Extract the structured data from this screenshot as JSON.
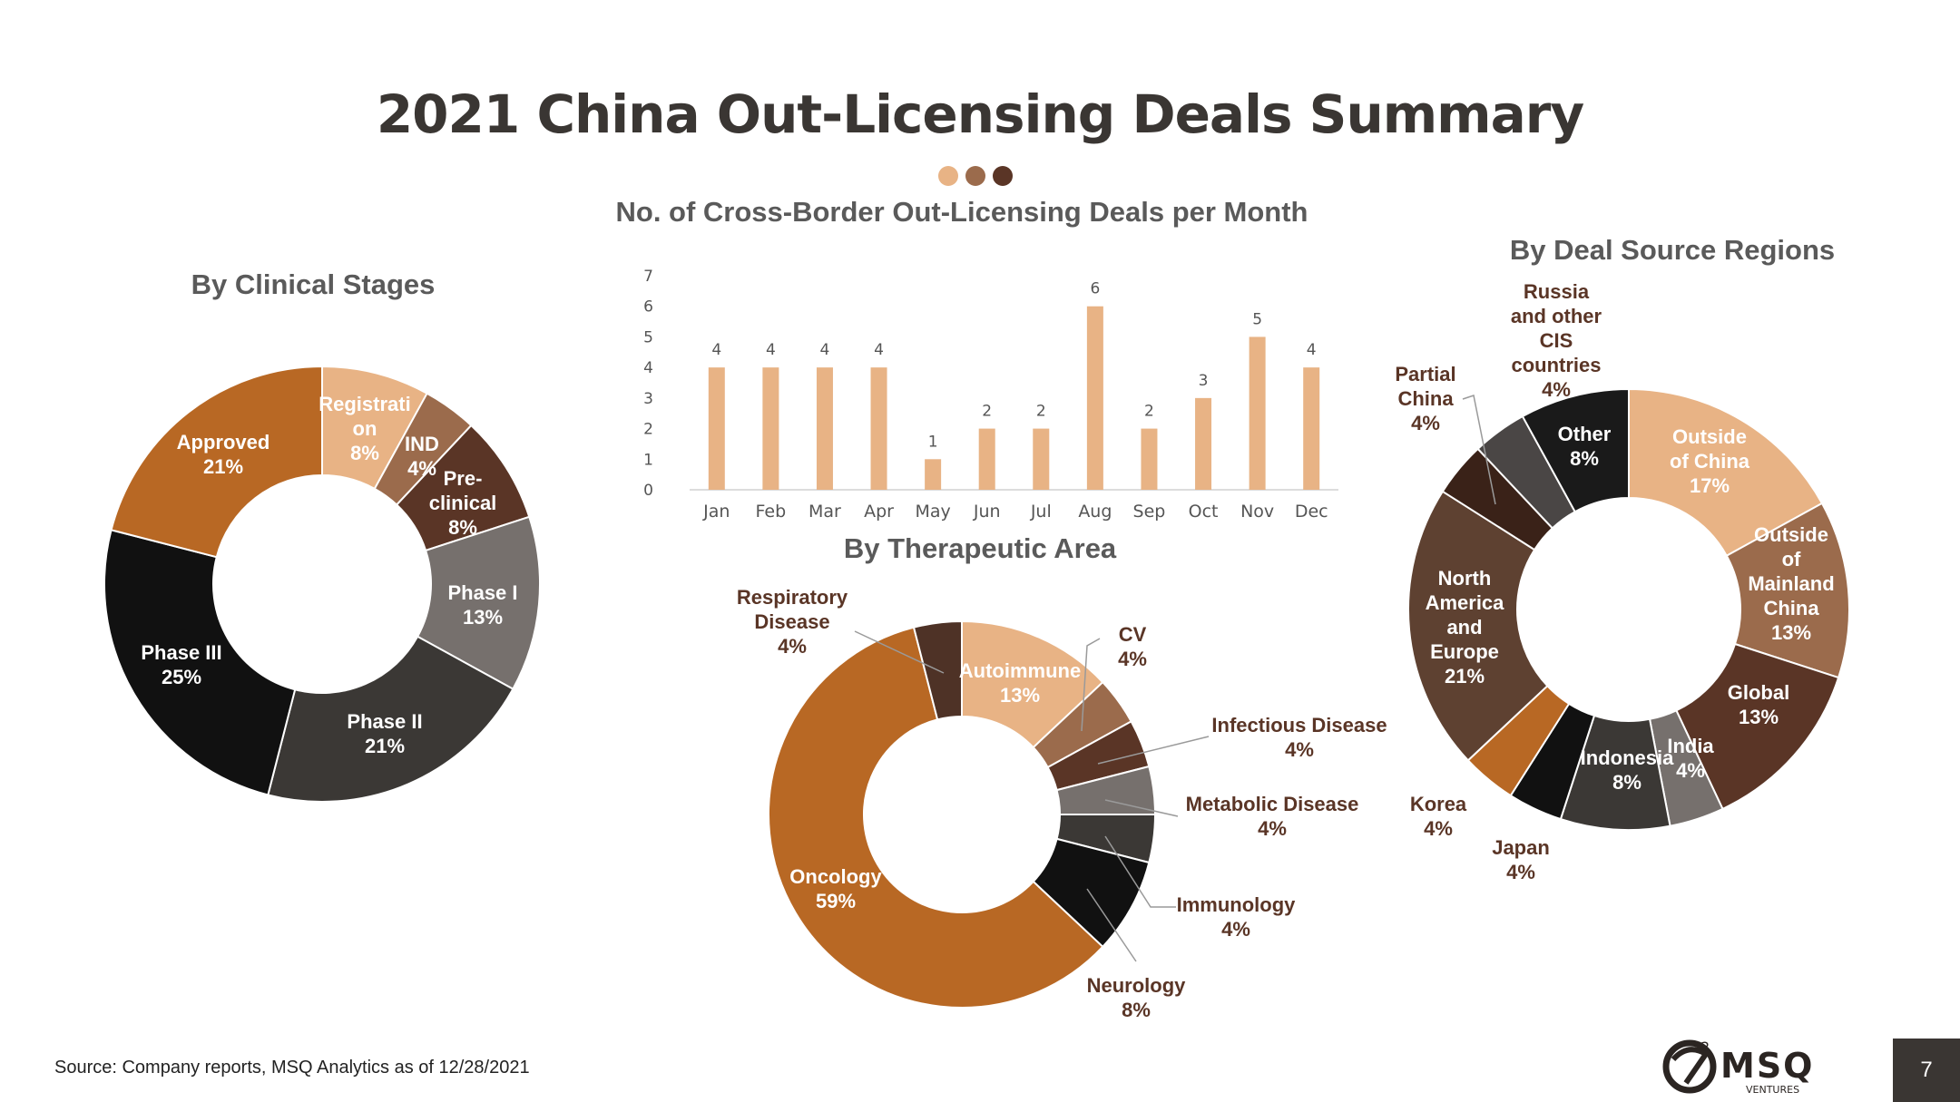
{
  "title": "2021 China Out-Licensing Deals Summary",
  "dots": [
    "#e8b385",
    "#9b6b4c",
    "#5a3526"
  ],
  "source": "Source: Company reports, MSQ Analytics as of 12/28/2021",
  "logo": {
    "brand": "MSQ",
    "sub": "VENTURES",
    "mark_sup": "2"
  },
  "page_number": "7",
  "chart_data": [
    {
      "type": "bar",
      "title": "No. of Cross-Border Out-Licensing Deals per Month",
      "categories": [
        "Jan",
        "Feb",
        "Mar",
        "Apr",
        "May",
        "Jun",
        "Jul",
        "Aug",
        "Sep",
        "Oct",
        "Nov",
        "Dec"
      ],
      "values": [
        4,
        4,
        4,
        4,
        1,
        2,
        2,
        6,
        2,
        3,
        5,
        4
      ],
      "ylim": [
        0,
        7
      ],
      "yticks": [
        "0",
        "1",
        "2",
        "3",
        "4",
        "5",
        "6",
        "7"
      ],
      "color": "#e8b385",
      "grid": false
    },
    {
      "type": "pie",
      "title": "By Clinical Stages",
      "slices": [
        {
          "label": "Registration",
          "display": "Registrati on",
          "pct": "8%",
          "value": 8,
          "color": "#e8b385",
          "text": "#ffffff"
        },
        {
          "label": "IND",
          "display": "IND",
          "pct": "4%",
          "value": 4,
          "color": "#9b6b4c",
          "text": "#ffffff"
        },
        {
          "label": "Pre-clinical",
          "display": "Pre- clinical",
          "pct": "8%",
          "value": 8,
          "color": "#5a3526",
          "text": "#ffffff"
        },
        {
          "label": "Phase I",
          "display": "Phase I",
          "pct": "13%",
          "value": 13,
          "color": "#76706d",
          "text": "#ffffff"
        },
        {
          "label": "Phase II",
          "display": "Phase II",
          "pct": "21%",
          "value": 21,
          "color": "#3b3835",
          "text": "#ffffff"
        },
        {
          "label": "Phase III",
          "display": "Phase III",
          "pct": "25%",
          "value": 25,
          "color": "#111111",
          "text": "#ffffff"
        },
        {
          "label": "Approved",
          "display": "Approved",
          "pct": "21%",
          "value": 21,
          "color": "#b86824",
          "text": "#ffffff"
        }
      ]
    },
    {
      "type": "pie",
      "title": "By Therapeutic Area",
      "slices": [
        {
          "label": "Autoimmune",
          "display": "Autoimmune",
          "pct": "13%",
          "value": 13,
          "color": "#e8b385"
        },
        {
          "label": "CV",
          "display": "CV",
          "pct": "4%",
          "value": 4,
          "color": "#9b6b4c"
        },
        {
          "label": "Infectious Disease",
          "display": "Infectious Disease",
          "pct": "4%",
          "value": 4,
          "color": "#5a3526"
        },
        {
          "label": "Metabolic Disease",
          "display": "Metabolic Disease",
          "pct": "4%",
          "value": 4,
          "color": "#76706d"
        },
        {
          "label": "Immunology",
          "display": "Immunology",
          "pct": "4%",
          "value": 4,
          "color": "#3b3835"
        },
        {
          "label": "Neurology",
          "display": "Neurology",
          "pct": "8%",
          "value": 8,
          "color": "#111111"
        },
        {
          "label": "Oncology",
          "display": "Oncology",
          "pct": "59%",
          "value": 59,
          "color": "#b86824"
        },
        {
          "label": "Respiratory Disease",
          "display": "Respiratory Disease",
          "pct": "4%",
          "value": 4,
          "color": "#4e3226"
        }
      ]
    },
    {
      "type": "pie",
      "title": "By Deal Source Regions",
      "slices": [
        {
          "label": "Outside of China",
          "display": "Outside of China",
          "pct": "17%",
          "value": 17,
          "color": "#e8b385"
        },
        {
          "label": "Outside of Mainland China",
          "display": "Outside of Mainland China",
          "pct": "13%",
          "value": 13,
          "color": "#9b6b4c"
        },
        {
          "label": "Global",
          "display": "Global",
          "pct": "13%",
          "value": 13,
          "color": "#5a3526"
        },
        {
          "label": "India",
          "display": "India",
          "pct": "4%",
          "value": 4,
          "color": "#76706d"
        },
        {
          "label": "Indonesia",
          "display": "Indonesia",
          "pct": "8%",
          "value": 8,
          "color": "#3b3835"
        },
        {
          "label": "Japan",
          "display": "Japan",
          "pct": "4%",
          "value": 4,
          "color": "#111111"
        },
        {
          "label": "Korea",
          "display": "Korea",
          "pct": "4%",
          "value": 4,
          "color": "#b86824"
        },
        {
          "label": "North America and Europe",
          "display": "North America and Europe",
          "pct": "21%",
          "value": 21,
          "color": "#5e4131"
        },
        {
          "label": "Partial China",
          "display": "Partial China",
          "pct": "4%",
          "value": 4,
          "color": "#3a2218"
        },
        {
          "label": "Russia and other CIS countries",
          "display": "Russia and other CIS countries",
          "pct": "4%",
          "value": 4,
          "color": "#4a4645"
        },
        {
          "label": "Other",
          "display": "Other",
          "pct": "8%",
          "value": 8,
          "color": "#1a1a1a"
        }
      ]
    }
  ]
}
